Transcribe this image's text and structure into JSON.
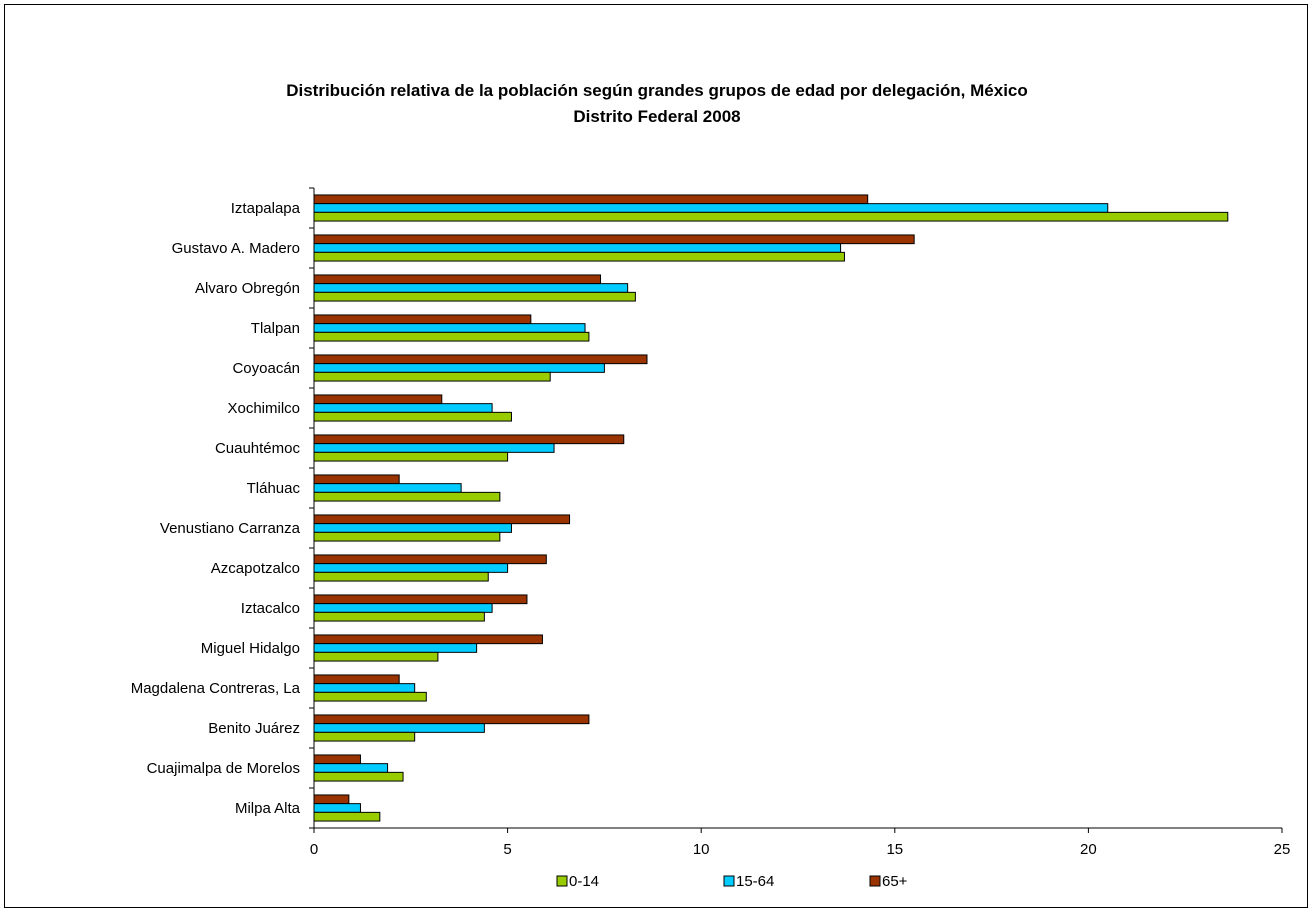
{
  "chart_data": {
    "type": "bar",
    "orientation": "horizontal",
    "title_lines": [
      "Distribución relativa de la población según grandes grupos de edad por delegación, México",
      "Distrito Federal 2008"
    ],
    "xlabel": "",
    "ylabel": "",
    "xlim": [
      0,
      25
    ],
    "x_ticks": [
      "0",
      "5",
      "10",
      "15",
      "20",
      "25"
    ],
    "grid": false,
    "legend_position": "bottom",
    "categories": [
      "Iztapalapa",
      "Gustavo A. Madero",
      "Alvaro Obregón",
      "Tlalpan",
      "Coyoacán",
      "Xochimilco",
      "Cuauhtémoc",
      "Tláhuac",
      "Venustiano Carranza",
      "Azcapotzalco",
      "Iztacalco",
      "Miguel Hidalgo",
      "Magdalena Contreras, La",
      "Benito Juárez",
      "Cuajimalpa de Morelos",
      "Milpa Alta"
    ],
    "series": [
      {
        "name": "0-14",
        "color": "#99CC00",
        "values": [
          23.6,
          13.7,
          8.3,
          7.1,
          6.1,
          5.1,
          5.0,
          4.8,
          4.8,
          4.5,
          4.4,
          3.2,
          2.9,
          2.6,
          2.3,
          1.7
        ]
      },
      {
        "name": "15-64",
        "color": "#00CCFF",
        "values": [
          20.5,
          13.6,
          8.1,
          7.0,
          7.5,
          4.6,
          6.2,
          3.8,
          5.1,
          5.0,
          4.6,
          4.2,
          2.6,
          4.4,
          1.9,
          1.2
        ]
      },
      {
        "name": "65+",
        "color": "#993300",
        "values": [
          14.3,
          15.5,
          7.4,
          5.6,
          8.6,
          3.3,
          8.0,
          2.2,
          6.6,
          6.0,
          5.5,
          5.9,
          2.2,
          7.1,
          1.2,
          0.9
        ]
      }
    ]
  }
}
